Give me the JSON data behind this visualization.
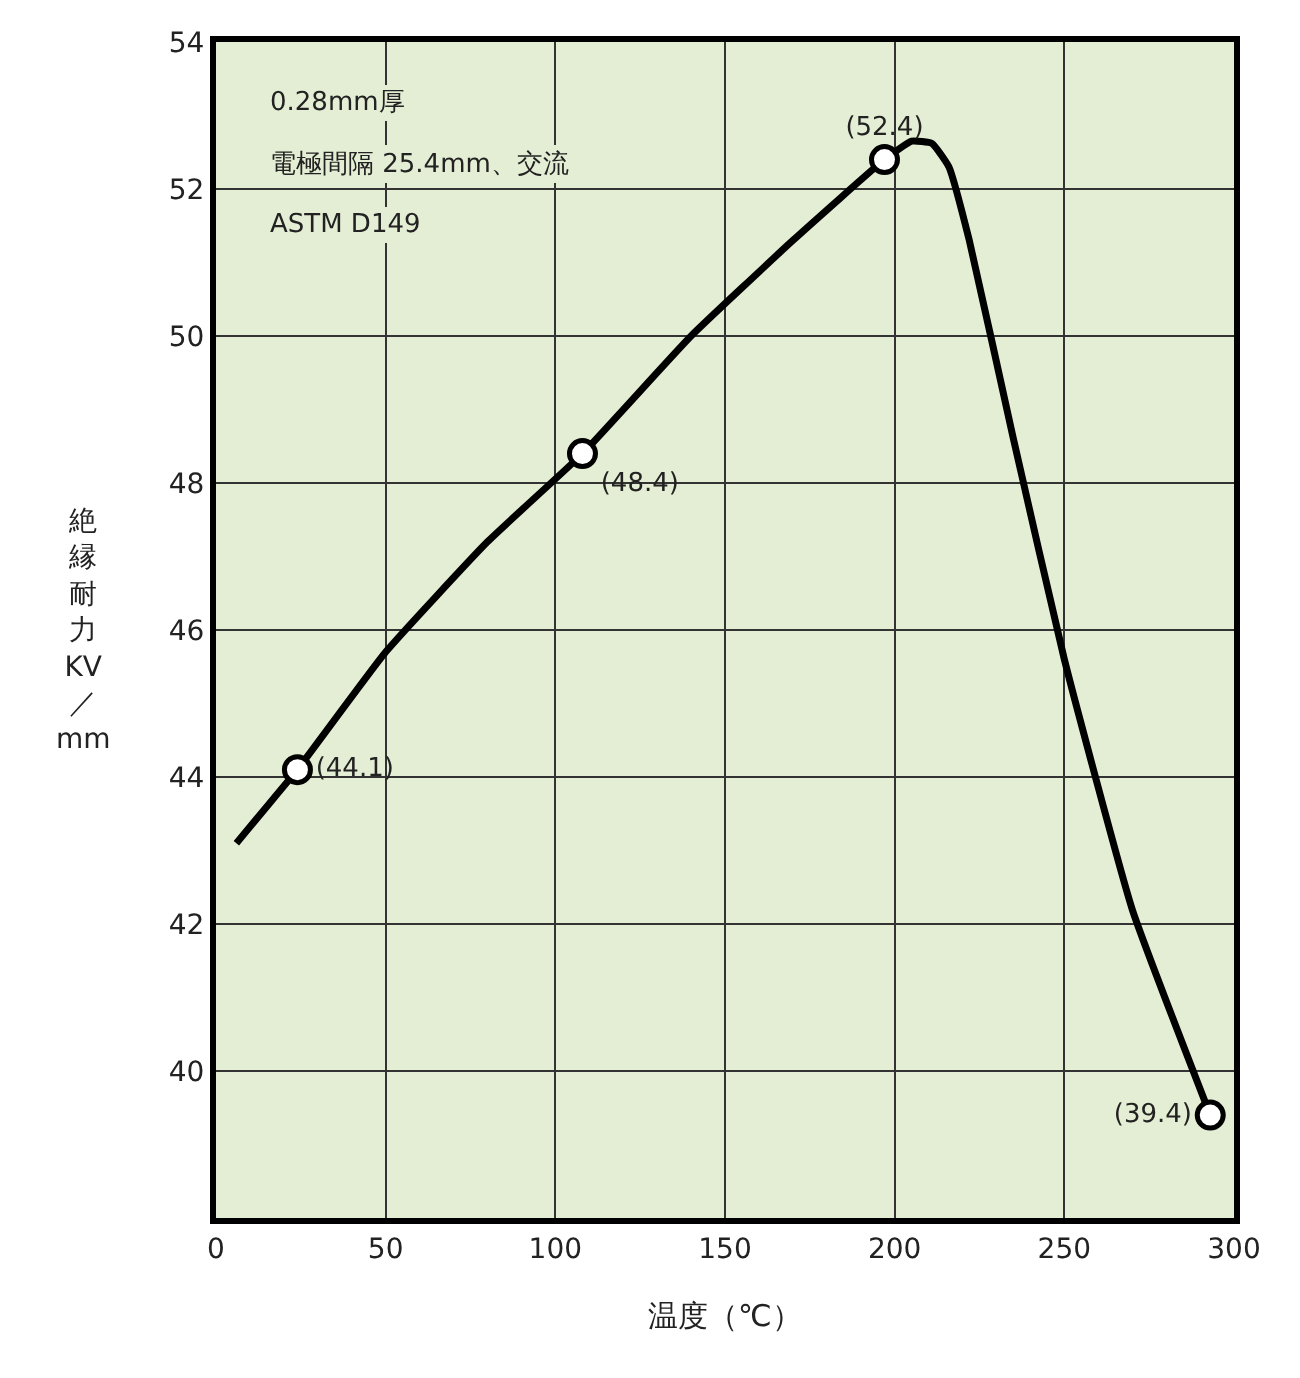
{
  "chart_data": {
    "type": "line",
    "xlabel": "温度（℃）",
    "ylabel": "絶縁耐力 KV／mm",
    "annotations": [
      "0.28mm厚",
      "電極間隔 25.4mm、交流",
      "ASTM D149"
    ],
    "xlim": [
      0,
      300
    ],
    "xticks": [
      0,
      50,
      100,
      150,
      200,
      250,
      300
    ],
    "ylim": [
      38,
      54
    ],
    "yticks": [
      40,
      42,
      44,
      46,
      48,
      50,
      52,
      54
    ],
    "grid": true,
    "series": [
      {
        "color": "#000000",
        "marker": "none",
        "x": [
          6,
          15,
          24,
          50,
          80,
          108,
          140,
          170,
          197,
          205,
          211,
          216,
          222,
          235,
          250,
          270,
          293
        ],
        "values": [
          43.1,
          43.6,
          44.1,
          45.7,
          47.2,
          48.4,
          50.0,
          51.3,
          52.4,
          52.65,
          52.62,
          52.3,
          51.3,
          48.6,
          45.6,
          42.2,
          39.4
        ]
      },
      {
        "type": "scatter",
        "color": "#000000",
        "marker": "circle",
        "x": [
          24,
          108,
          197,
          293
        ],
        "values": [
          44.1,
          48.4,
          52.4,
          39.4
        ],
        "value_labels": [
          "(44.1)",
          "(48.4)",
          "(52.4)",
          "(39.4)"
        ]
      }
    ]
  }
}
